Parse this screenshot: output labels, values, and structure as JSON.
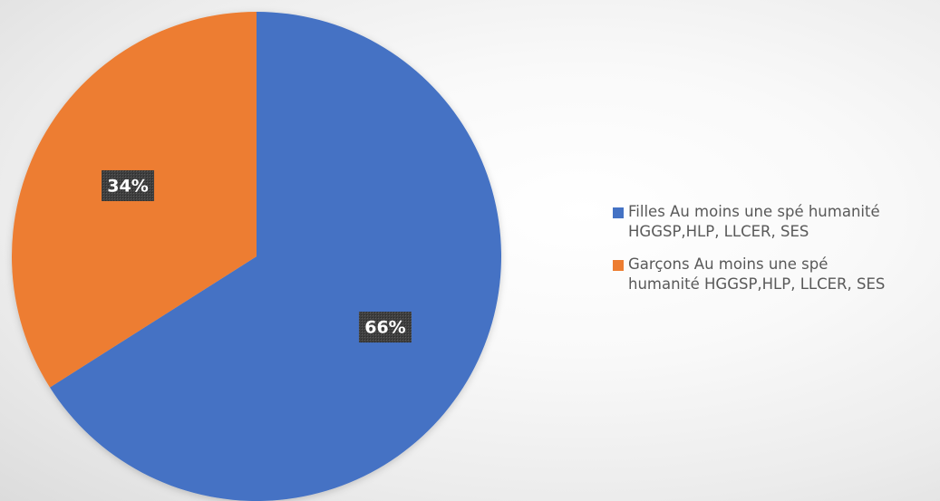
{
  "chart_data": {
    "type": "pie",
    "title": "",
    "categories": [
      "Filles  Au moins une spé humanité\nHGGSP,HLP, LLCER, SES",
      "Garçons Au moins une spé\nhumanité HGGSP,HLP, LLCER, SES"
    ],
    "values": [
      66,
      34
    ],
    "value_labels": [
      "66%",
      "34%"
    ],
    "colors": [
      "#4472C4",
      "#ED7D31"
    ],
    "start_angle_deg": 0,
    "direction": "clockwise",
    "legend_position": "right"
  }
}
